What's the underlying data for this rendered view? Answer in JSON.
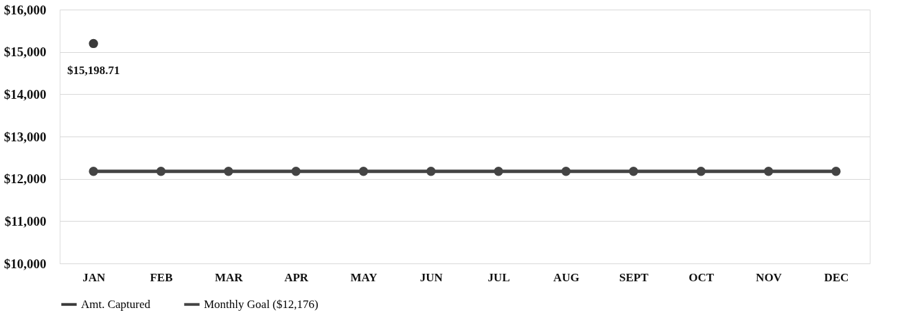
{
  "chart_data": {
    "type": "line",
    "categories": [
      "JAN",
      "FEB",
      "MAR",
      "APR",
      "MAY",
      "JUN",
      "JUL",
      "AUG",
      "SEPT",
      "OCT",
      "NOV",
      "DEC"
    ],
    "series": [
      {
        "name": "Amt. Captured",
        "color": "#3a3a3a",
        "values": [
          15198.71,
          null,
          null,
          null,
          null,
          null,
          null,
          null,
          null,
          null,
          null,
          null
        ],
        "value_labels": [
          "$15,198.71",
          null,
          null,
          null,
          null,
          null,
          null,
          null,
          null,
          null,
          null,
          null
        ]
      },
      {
        "name": "Monthly Goal ($12,176)",
        "color": "#444444",
        "values": [
          12176,
          12176,
          12176,
          12176,
          12176,
          12176,
          12176,
          12176,
          12176,
          12176,
          12176,
          12176
        ]
      }
    ],
    "ylim": [
      10000,
      16000
    ],
    "yticks": [
      {
        "value": 10000,
        "label": "$10,000"
      },
      {
        "value": 11000,
        "label": "$11,000"
      },
      {
        "value": 12000,
        "label": "$12,000"
      },
      {
        "value": 13000,
        "label": "$13,000"
      },
      {
        "value": 14000,
        "label": "$14,000"
      },
      {
        "value": 15000,
        "label": "$15,000"
      },
      {
        "value": 16000,
        "label": "$16,000"
      }
    ],
    "grid": "y",
    "legend": "bottom",
    "marker": "circle",
    "line_style": "solid"
  }
}
